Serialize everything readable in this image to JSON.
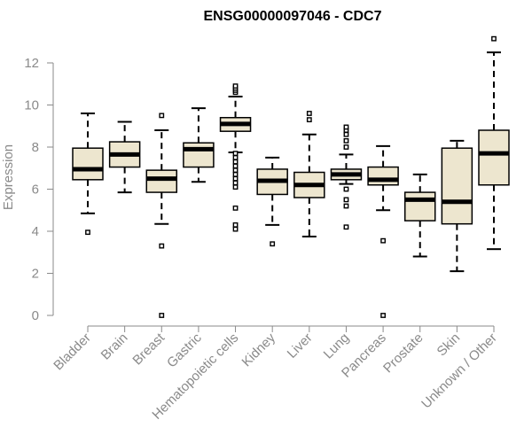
{
  "chart_data": {
    "type": "boxplot",
    "title": "ENSG00000097046 - CDC7",
    "xlabel": "",
    "ylabel": "Expression",
    "ylim": [
      0,
      12.5
    ],
    "yticks": [
      0,
      2,
      4,
      6,
      8,
      10,
      12
    ],
    "grid": false,
    "box_color": "#ede6cf",
    "categories": [
      "Bladder",
      "Brain",
      "Breast",
      "Gastric",
      "Hematopoietic cells",
      "Kidney",
      "Liver",
      "Lung",
      "Pancreas",
      "Prostate",
      "Skin",
      "Unknown / Other"
    ],
    "boxes": [
      {
        "whisker_low": 4.85,
        "q1": 6.45,
        "median": 6.95,
        "q3": 7.95,
        "whisker_high": 9.6,
        "outliers": [
          3.95
        ]
      },
      {
        "whisker_low": 5.85,
        "q1": 7.05,
        "median": 7.65,
        "q3": 8.25,
        "whisker_high": 9.2,
        "outliers": []
      },
      {
        "whisker_low": 4.35,
        "q1": 5.85,
        "median": 6.5,
        "q3": 6.9,
        "whisker_high": 8.8,
        "outliers": [
          9.5,
          3.3,
          0.0
        ]
      },
      {
        "whisker_low": 6.35,
        "q1": 7.05,
        "median": 7.9,
        "q3": 8.2,
        "whisker_high": 9.85,
        "outliers": []
      },
      {
        "whisker_low": 7.75,
        "q1": 8.75,
        "median": 9.1,
        "q3": 9.4,
        "whisker_high": 10.4,
        "outliers": [
          10.6,
          10.7,
          10.8,
          10.9,
          7.7,
          7.5,
          7.3,
          7.1,
          6.9,
          6.7,
          6.5,
          6.3,
          6.1,
          5.1,
          4.3,
          4.1
        ]
      },
      {
        "whisker_low": 4.3,
        "q1": 5.75,
        "median": 6.4,
        "q3": 6.95,
        "whisker_high": 7.5,
        "outliers": [
          3.4
        ]
      },
      {
        "whisker_low": 3.75,
        "q1": 5.6,
        "median": 6.2,
        "q3": 6.8,
        "whisker_high": 8.6,
        "outliers": [
          9.3,
          9.6
        ]
      },
      {
        "whisker_low": 6.25,
        "q1": 6.45,
        "median": 6.7,
        "q3": 6.95,
        "whisker_high": 7.65,
        "outliers": [
          8.0,
          8.3,
          8.6,
          8.8,
          8.95,
          6.0,
          5.5,
          5.2,
          4.2
        ]
      },
      {
        "whisker_low": 5.0,
        "q1": 6.2,
        "median": 6.45,
        "q3": 7.05,
        "whisker_high": 8.05,
        "outliers": [
          3.55,
          0.0
        ]
      },
      {
        "whisker_low": 2.8,
        "q1": 4.5,
        "median": 5.5,
        "q3": 5.85,
        "whisker_high": 6.7,
        "outliers": []
      },
      {
        "whisker_low": 2.1,
        "q1": 4.35,
        "median": 5.4,
        "q3": 7.95,
        "whisker_high": 8.3,
        "outliers": []
      },
      {
        "whisker_low": 3.15,
        "q1": 6.2,
        "median": 7.7,
        "q3": 8.8,
        "whisker_high": 12.5,
        "outliers": [
          13.15
        ]
      }
    ]
  }
}
